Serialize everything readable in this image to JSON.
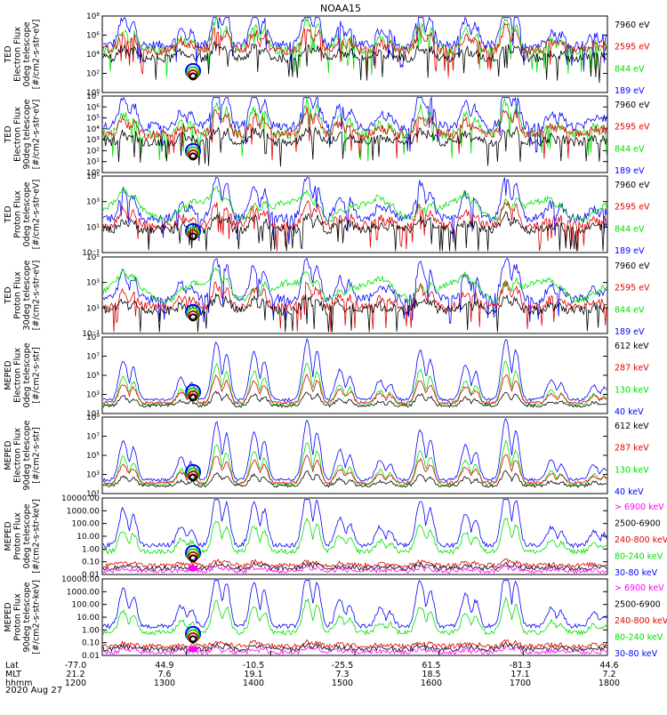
{
  "title": "NOAA15",
  "date_label": "2020 Aug 27",
  "colors": {
    "black": "#000000",
    "red": "#e00000",
    "green": "#00e000",
    "blue": "#0000ff",
    "magenta": "#ff00ff"
  },
  "chart_data": [
    {
      "type": "line",
      "panel": 1,
      "ylabel": [
        "TED",
        "Electron Flux",
        "0deg telescope",
        "[#/cm2-s-str-eV]"
      ],
      "yscale": "log",
      "ylim_exp": [
        0,
        8
      ],
      "ytick_labels": [
        "10⁰",
        "10²",
        "10⁴",
        "10⁶",
        "10⁸"
      ],
      "series": [
        {
          "name": "7960 eV",
          "color": "black",
          "baseline": 0.45
        },
        {
          "name": "2595 eV",
          "color": "red",
          "baseline": 0.55
        },
        {
          "name": "844 eV",
          "color": "green",
          "baseline": 0.55
        },
        {
          "name": "189 eV",
          "color": "blue",
          "baseline": 0.62
        }
      ],
      "peaks": [
        0.4,
        0.22,
        0.58,
        0.48,
        0.6,
        0.3,
        0.2,
        0.5,
        0.35,
        0.62,
        0.2,
        0.15
      ],
      "style": "electron"
    },
    {
      "type": "line",
      "panel": 2,
      "ylabel": [
        "TED",
        "Electron Flux",
        "90deg telescope",
        "[#/cm2-s-str-eV]"
      ],
      "yscale": "log",
      "ylim_exp": [
        0,
        7
      ],
      "ytick_labels": [
        "10⁰",
        "10¹",
        "10²",
        "10³",
        "10⁴",
        "10⁵",
        "10⁶",
        "10⁷"
      ],
      "series": [
        {
          "name": "7960 eV",
          "color": "black",
          "baseline": 0.4
        },
        {
          "name": "2595 eV",
          "color": "red",
          "baseline": 0.5
        },
        {
          "name": "844 eV",
          "color": "green",
          "baseline": 0.5
        },
        {
          "name": "189 eV",
          "color": "blue",
          "baseline": 0.6
        }
      ],
      "peaks": [
        0.4,
        0.22,
        0.58,
        0.48,
        0.6,
        0.3,
        0.2,
        0.5,
        0.35,
        0.62,
        0.2,
        0.15
      ],
      "style": "electron"
    },
    {
      "type": "line",
      "panel": 3,
      "ylabel": [
        "TED",
        "Proton Flux",
        "0deg telescope",
        "[#/cm2-s-str-eV]"
      ],
      "yscale": "log",
      "ylim_exp": [
        -1,
        5
      ],
      "ytick_labels": [
        "10⁻¹",
        "10¹",
        "10³",
        "10⁵"
      ],
      "series": [
        {
          "name": "7960 eV",
          "color": "black",
          "baseline": 0.3
        },
        {
          "name": "2595 eV",
          "color": "red",
          "baseline": 0.35
        },
        {
          "name": "844 eV",
          "color": "green",
          "baseline": 0.55
        },
        {
          "name": "189 eV",
          "color": "blue",
          "baseline": 0.45
        }
      ],
      "peaks": [
        0.4,
        0.22,
        0.58,
        0.48,
        0.6,
        0.3,
        0.2,
        0.5,
        0.35,
        0.62,
        0.2,
        0.15
      ],
      "style": "proton"
    },
    {
      "type": "line",
      "panel": 4,
      "ylabel": [
        "TED",
        "Proton Flux",
        "30deg telescope",
        "[#/cm2-s-str-eV]"
      ],
      "yscale": "log",
      "ylim_exp": [
        -1,
        5
      ],
      "ytick_labels": [
        "10⁻¹",
        "10¹",
        "10³",
        "10⁵"
      ],
      "series": [
        {
          "name": "7960 eV",
          "color": "black",
          "baseline": 0.3
        },
        {
          "name": "2595 eV",
          "color": "red",
          "baseline": 0.35
        },
        {
          "name": "844 eV",
          "color": "green",
          "baseline": 0.55
        },
        {
          "name": "189 eV",
          "color": "blue",
          "baseline": 0.45
        }
      ],
      "peaks": [
        0.4,
        0.22,
        0.58,
        0.48,
        0.6,
        0.3,
        0.2,
        0.5,
        0.35,
        0.62,
        0.2,
        0.15
      ],
      "style": "proton"
    },
    {
      "type": "line",
      "panel": 5,
      "ylabel": [
        "MEPED",
        "Electron Flux",
        "0deg telescope",
        "[#/cm2-s-str]"
      ],
      "yscale": "log",
      "ylim_exp": [
        1,
        9
      ],
      "ytick_labels": [
        "10¹",
        "10³",
        "10⁵",
        "10⁷",
        "10⁹"
      ],
      "series": [
        {
          "name": "612 keV",
          "color": "black",
          "baseline": 0.1
        },
        {
          "name": "287 keV",
          "color": "red",
          "baseline": 0.14
        },
        {
          "name": "130 keV",
          "color": "green",
          "baseline": 0.12
        },
        {
          "name": "40 keV",
          "color": "blue",
          "baseline": 0.18
        }
      ],
      "peaks": [
        0.4,
        0.22,
        0.58,
        0.48,
        0.6,
        0.3,
        0.2,
        0.5,
        0.35,
        0.62,
        0.2,
        0.15
      ],
      "style": "meped"
    },
    {
      "type": "line",
      "panel": 6,
      "ylabel": [
        "MEPED",
        "Electron Flux",
        "90deg telescope",
        "[#/cm2-s-str]"
      ],
      "yscale": "log",
      "ylim_exp": [
        1,
        9
      ],
      "ytick_labels": [
        "10¹",
        "10³",
        "10⁵",
        "10⁷",
        "10⁹"
      ],
      "series": [
        {
          "name": "612 keV",
          "color": "black",
          "baseline": 0.1
        },
        {
          "name": "287 keV",
          "color": "red",
          "baseline": 0.14
        },
        {
          "name": "130 keV",
          "color": "green",
          "baseline": 0.12
        },
        {
          "name": "40 keV",
          "color": "blue",
          "baseline": 0.18
        }
      ],
      "peaks": [
        0.4,
        0.22,
        0.58,
        0.48,
        0.6,
        0.3,
        0.2,
        0.5,
        0.35,
        0.62,
        0.2,
        0.15
      ],
      "style": "meped"
    },
    {
      "type": "line",
      "panel": 7,
      "ylabel": [
        "MEPED",
        "Proton Flux",
        "0deg telescope",
        "[#/cm2-s-str-keV]"
      ],
      "yscale": "log",
      "ylim_exp": [
        -2,
        4
      ],
      "ytick_labels": [
        "0.01",
        "0.10",
        "1.00",
        "10.00",
        "100.00",
        "1000.00",
        "10000.00"
      ],
      "series": [
        {
          "name": "> 6900 keV",
          "color": "magenta",
          "baseline": 0.04
        },
        {
          "name": "2500-6900",
          "color": "black",
          "baseline": 0.08
        },
        {
          "name": "240-800 keV",
          "color": "red",
          "baseline": 0.12
        },
        {
          "name": "80-240 keV",
          "color": "green",
          "baseline": 0.3
        },
        {
          "name": "30-80 keV",
          "color": "blue",
          "baseline": 0.38
        }
      ],
      "peaks": [
        0.4,
        0.22,
        0.58,
        0.48,
        0.6,
        0.3,
        0.2,
        0.5,
        0.35,
        0.62,
        0.2,
        0.15
      ],
      "style": "mproton"
    },
    {
      "type": "line",
      "panel": 8,
      "ylabel": [
        "MEPED",
        "Proton Flux",
        "90deg telescope",
        "[#/cm2-s-str-keV]"
      ],
      "yscale": "log",
      "ylim_exp": [
        -2,
        4
      ],
      "ytick_labels": [
        "0.01",
        "0.10",
        "1.00",
        "10.00",
        "100.00",
        "1000.00",
        "10000.00"
      ],
      "series": [
        {
          "name": "> 6900 keV",
          "color": "magenta",
          "baseline": 0.04
        },
        {
          "name": "2500-6900",
          "color": "black",
          "baseline": 0.08
        },
        {
          "name": "240-800 keV",
          "color": "red",
          "baseline": 0.12
        },
        {
          "name": "80-240 keV",
          "color": "green",
          "baseline": 0.3
        },
        {
          "name": "30-80 keV",
          "color": "blue",
          "baseline": 0.38
        }
      ],
      "peaks": [
        0.4,
        0.22,
        0.58,
        0.48,
        0.6,
        0.3,
        0.2,
        0.5,
        0.35,
        0.62,
        0.2,
        0.15
      ],
      "style": "mproton"
    }
  ],
  "x_axis": {
    "row_labels": [
      "Lat",
      "MLT",
      "hhmm"
    ],
    "time_range_hhmm": [
      "1200",
      "1800"
    ],
    "ticks": [
      {
        "lat": "-77.0",
        "mlt": "21.2",
        "hhmm": "1200"
      },
      {
        "lat": "44.9",
        "mlt": "7.6",
        "hhmm": "1300"
      },
      {
        "lat": "-10.5",
        "mlt": "19.1",
        "hhmm": "1400"
      },
      {
        "lat": "-25.5",
        "mlt": "7.3",
        "hhmm": "1500"
      },
      {
        "lat": "61.5",
        "mlt": "18.5",
        "hhmm": "1600"
      },
      {
        "lat": "-81.3",
        "mlt": "17.1",
        "hhmm": "1700"
      },
      {
        "lat": "44.6",
        "mlt": "7.2",
        "hhmm": "1800"
      }
    ]
  }
}
